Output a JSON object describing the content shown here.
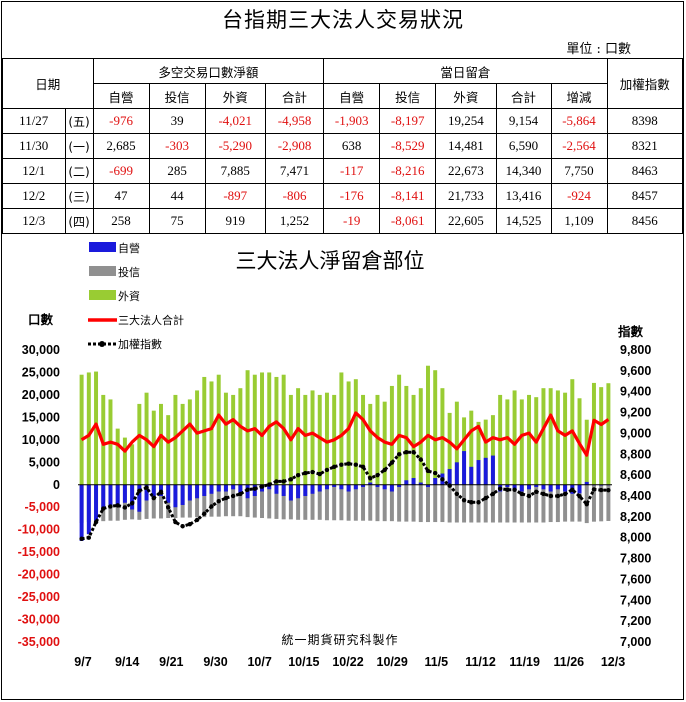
{
  "title": "台指期三大法人交易狀況",
  "unit": "單位 : 口數",
  "table": {
    "date_header": "日期",
    "group1": "多空交易口數淨額",
    "group2": "當日留倉",
    "index_header": "加權指數",
    "sub1": [
      "自營",
      "投信",
      "外資",
      "合計"
    ],
    "sub2": [
      "自營",
      "投信",
      "外資",
      "合計",
      "增減"
    ],
    "rows": [
      {
        "date": "11/27",
        "day": "(五)",
        "n": [
          "-976",
          "39",
          "-4,021",
          "-4,958"
        ],
        "o": [
          "-1,903",
          "-8,197",
          "19,254",
          "9,154",
          "-5,864"
        ],
        "idx": "8398"
      },
      {
        "date": "11/30",
        "day": "(一)",
        "n": [
          "2,685",
          "-303",
          "-5,290",
          "-2,908"
        ],
        "o": [
          "638",
          "-8,529",
          "14,481",
          "6,590",
          "-2,564"
        ],
        "idx": "8321"
      },
      {
        "date": "12/1",
        "day": "(二)",
        "n": [
          "-699",
          "285",
          "7,885",
          "7,471"
        ],
        "o": [
          "-117",
          "-8,216",
          "22,673",
          "14,340",
          "7,750"
        ],
        "idx": "8463"
      },
      {
        "date": "12/2",
        "day": "(三)",
        "n": [
          "47",
          "44",
          "-897",
          "-806"
        ],
        "o": [
          "-176",
          "-8,141",
          "21,733",
          "13,416",
          "-924"
        ],
        "idx": "8457"
      },
      {
        "date": "12/3",
        "day": "(四)",
        "n": [
          "258",
          "75",
          "919",
          "1,252"
        ],
        "o": [
          "-19",
          "-8,061",
          "22,605",
          "14,525",
          "1,109"
        ],
        "idx": "8456"
      }
    ]
  },
  "chart_data": {
    "type": "bar",
    "title": "三大法人淨留倉部位",
    "ylabel": "口數",
    "y2label": "指數",
    "footer": "統一期貨研究科製作",
    "ylim": [
      -35000,
      30000
    ],
    "y2lim": [
      7000,
      9800
    ],
    "yticks": [
      "30,000",
      "25,000",
      "20,000",
      "15,000",
      "10,000",
      "5,000",
      "0",
      "-5,000",
      "-10,000",
      "-15,000",
      "-20,000",
      "-25,000",
      "-30,000",
      "-35,000"
    ],
    "y2ticks": [
      "9,800",
      "9,600",
      "9,400",
      "9,200",
      "9,000",
      "8,800",
      "8,600",
      "8,400",
      "8,200",
      "8,000",
      "7,800",
      "7,600",
      "7,400",
      "7,200",
      "7,000"
    ],
    "xtick_labels": [
      "9/7",
      "9/14",
      "9/21",
      "9/30",
      "10/7",
      "10/15",
      "10/22",
      "10/29",
      "11/5",
      "11/12",
      "11/19",
      "11/26",
      "12/3"
    ],
    "legend_position": "top-left",
    "series": [
      {
        "name": "自營",
        "color": "#1a1adc",
        "values": [
          -12500,
          -11000,
          -8000,
          -5500,
          -5000,
          -4500,
          -4000,
          -5500,
          -6000,
          -3500,
          -3000,
          -2500,
          -4000,
          -5000,
          -4500,
          -3500,
          -3000,
          -2500,
          -2000,
          -1500,
          -1500,
          -1000,
          -2000,
          -3000,
          -2500,
          -1500,
          -1000,
          -2000,
          -2500,
          -3500,
          -3000,
          -2500,
          -2000,
          -1500,
          -1000,
          -500,
          -1000,
          -1500,
          -1000,
          -500,
          500,
          -500,
          -1000,
          -1500,
          -500,
          1000,
          1500,
          500,
          -500,
          1500,
          2500,
          3500,
          5000,
          7500,
          4000,
          5500,
          6000,
          6500,
          -1500,
          -500,
          -1000,
          -1500,
          -1000,
          -500,
          -1000,
          -1500,
          -1000,
          -1500,
          -2000,
          -1903,
          638,
          -117,
          -176,
          -19
        ]
      },
      {
        "name": "投信",
        "color": "#909090",
        "values": [
          -8500,
          -8300,
          -8200,
          -8100,
          -8000,
          -8000,
          -7800,
          -7700,
          -7800,
          -7600,
          -7500,
          -7500,
          -7400,
          -7400,
          -7300,
          -7300,
          -7200,
          -7200,
          -7100,
          -7100,
          -7000,
          -7000,
          -7000,
          -7200,
          -7300,
          -7400,
          -7500,
          -7600,
          -7700,
          -7700,
          -7800,
          -7800,
          -7800,
          -7800,
          -7900,
          -7900,
          -7900,
          -8000,
          -8000,
          -8000,
          -8000,
          -8100,
          -8100,
          -8100,
          -8200,
          -8200,
          -8200,
          -8300,
          -8300,
          -8300,
          -8300,
          -8400,
          -8400,
          -8400,
          -8400,
          -8400,
          -8400,
          -8400,
          -8400,
          -8400,
          -8400,
          -8400,
          -8400,
          -8400,
          -8400,
          -8300,
          -8300,
          -8200,
          -8200,
          -8197,
          -8529,
          -8216,
          -8141,
          -8061
        ]
      },
      {
        "name": "外資",
        "color": "#99cc33",
        "values": [
          24500,
          25000,
          25200,
          20000,
          19000,
          12500,
          10500,
          9000,
          18000,
          20500,
          16500,
          18000,
          15500,
          20000,
          18000,
          19000,
          21000,
          24000,
          23000,
          24500,
          20500,
          20000,
          21500,
          25500,
          24500,
          25000,
          25000,
          24000,
          24500,
          20000,
          21500,
          20000,
          21000,
          20000,
          20500,
          20000,
          25000,
          23000,
          23500,
          20000,
          18000,
          20000,
          18500,
          22000,
          24500,
          22000,
          20000,
          21500,
          26500,
          25500,
          21500,
          16000,
          18500,
          15000,
          16500,
          14000,
          14500,
          15500,
          20000,
          19000,
          21000,
          19000,
          20000,
          19500,
          21500,
          21500,
          21000,
          20500,
          23500,
          19254,
          14481,
          22673,
          21733,
          22605
        ]
      },
      {
        "name": "三大法人合計",
        "color": "#ff0000",
        "values": [
          10000,
          11000,
          13500,
          9000,
          9500,
          9000,
          7500,
          9500,
          11000,
          10000,
          8500,
          11000,
          9500,
          10500,
          12000,
          13500,
          11500,
          12000,
          12500,
          15500,
          13500,
          14500,
          13000,
          12000,
          12500,
          11000,
          13000,
          14000,
          12500,
          10000,
          12500,
          11000,
          11500,
          10500,
          9500,
          10000,
          11000,
          12500,
          16000,
          14500,
          12000,
          10500,
          9500,
          9000,
          11000,
          10500,
          8500,
          9500,
          11000,
          10000,
          10500,
          9500,
          8000,
          10000,
          12000,
          13000,
          9500,
          10500,
          10000,
          10500,
          9000,
          11000,
          11500,
          9500,
          12500,
          15500,
          12000,
          11000,
          12000,
          9154,
          6590,
          14340,
          13416,
          14525
        ]
      },
      {
        "name": "加權指數",
        "color": "#000000",
        "values": [
          7990,
          8000,
          8150,
          8280,
          8300,
          8310,
          8290,
          8330,
          8450,
          8480,
          8380,
          8440,
          8290,
          8150,
          8110,
          8130,
          8170,
          8230,
          8300,
          8350,
          8380,
          8400,
          8420,
          8460,
          8470,
          8490,
          8510,
          8540,
          8540,
          8560,
          8600,
          8620,
          8630,
          8610,
          8650,
          8680,
          8700,
          8710,
          8700,
          8680,
          8570,
          8600,
          8650,
          8720,
          8800,
          8820,
          8820,
          8750,
          8640,
          8620,
          8560,
          8500,
          8420,
          8360,
          8340,
          8340,
          8380,
          8420,
          8470,
          8460,
          8460,
          8420,
          8400,
          8440,
          8420,
          8400,
          8400,
          8420,
          8460,
          8398,
          8321,
          8463,
          8457,
          8456
        ]
      }
    ]
  }
}
